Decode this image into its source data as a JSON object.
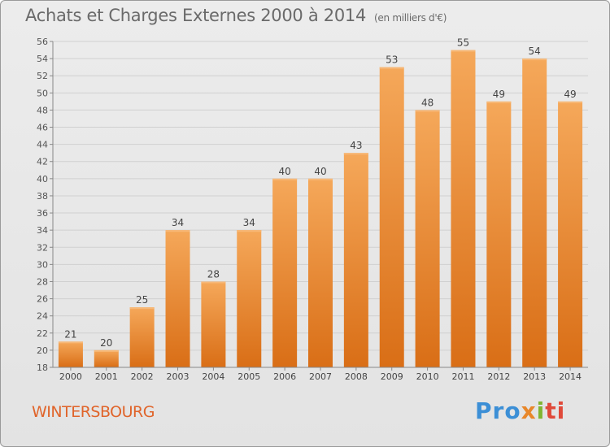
{
  "chart_data": {
    "type": "bar",
    "title": "Achats et Charges Externes 2000 à 2014",
    "subtitle": "(en milliers d'€)",
    "categories": [
      "2000",
      "2001",
      "2002",
      "2003",
      "2004",
      "2005",
      "2006",
      "2007",
      "2008",
      "2009",
      "2010",
      "2011",
      "2012",
      "2013",
      "2014"
    ],
    "values": [
      21,
      20,
      25,
      34,
      28,
      34,
      40,
      40,
      43,
      53,
      48,
      55,
      49,
      54,
      49
    ],
    "ylim": [
      18,
      56
    ],
    "yticks": [
      18,
      20,
      22,
      24,
      26,
      28,
      30,
      32,
      34,
      36,
      38,
      40,
      42,
      44,
      46,
      48,
      50,
      52,
      54,
      56
    ],
    "xlabel": "",
    "ylabel": "",
    "grid": true,
    "bar_color": "#e8872a",
    "bar_color_top": "#f5a85a",
    "bar_color_bottom": "#d96e16"
  },
  "location": "WINTERSBOURG",
  "logo": {
    "text": "Proxiti",
    "parts": [
      "Pro",
      "x",
      "i",
      "ti"
    ]
  }
}
